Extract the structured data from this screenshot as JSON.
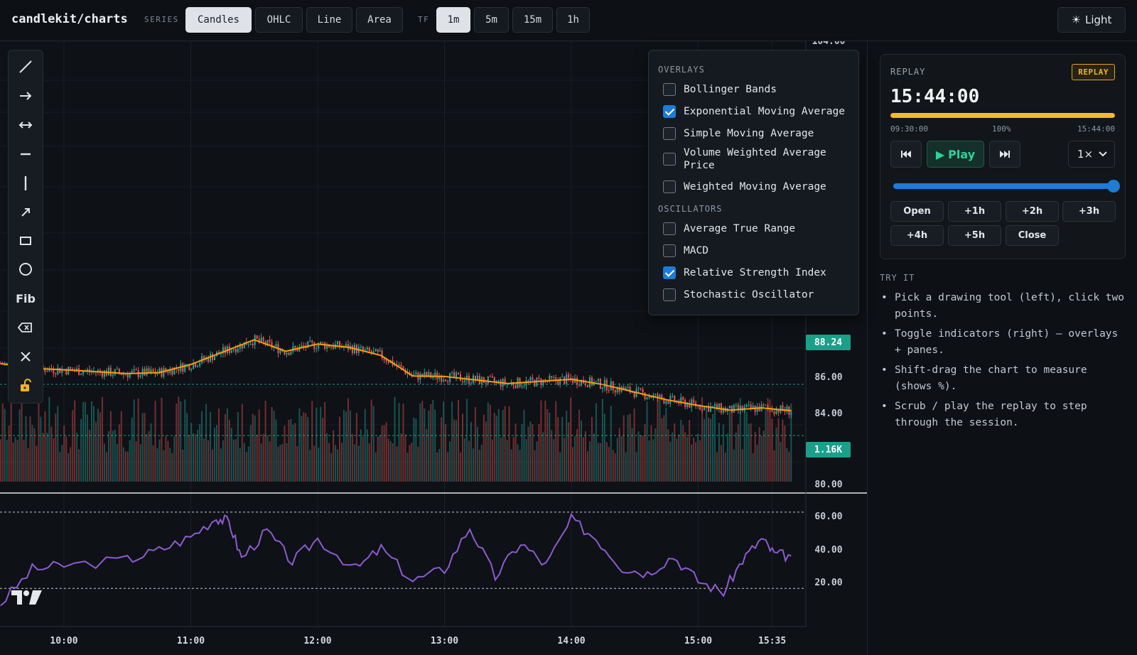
{
  "app": {
    "brand": "candlekit/charts"
  },
  "toolbar": {
    "series_label": "SERIES",
    "series": [
      "Candles",
      "OHLC",
      "Line",
      "Area"
    ],
    "series_active": "Candles",
    "tf_label": "TF",
    "timeframes": [
      "1m",
      "5m",
      "15m",
      "1h"
    ],
    "tf_active": "1m",
    "theme_label": "Light",
    "theme_icon": "sun-icon"
  },
  "drawing_tools": [
    {
      "name": "trendline-tool",
      "icon": "diagonal-line-icon"
    },
    {
      "name": "ray-tool",
      "icon": "arrow-right-icon"
    },
    {
      "name": "extended-line-tool",
      "icon": "double-arrow-icon"
    },
    {
      "name": "horizontal-line-tool",
      "icon": "minus-icon"
    },
    {
      "name": "vertical-line-tool",
      "icon": "vertical-bar-icon"
    },
    {
      "name": "arrow-tool",
      "icon": "arrow-up-right-icon"
    },
    {
      "name": "rectangle-tool",
      "icon": "rectangle-icon"
    },
    {
      "name": "circle-tool",
      "icon": "circle-icon"
    },
    {
      "name": "fib-tool",
      "label": "Fib"
    },
    {
      "name": "eraser-tool",
      "icon": "eraser-icon"
    },
    {
      "name": "clear-tool",
      "icon": "close-icon"
    },
    {
      "name": "lock-tool",
      "icon": "lock-open-icon"
    }
  ],
  "indicators": {
    "overlays_title": "OVERLAYS",
    "overlays": [
      {
        "label": "Bollinger Bands",
        "checked": false
      },
      {
        "label": "Exponential Moving Average",
        "checked": true
      },
      {
        "label": "Simple Moving Average",
        "checked": false
      },
      {
        "label": "Volume Weighted Average Price",
        "checked": false
      },
      {
        "label": "Weighted Moving Average",
        "checked": false
      }
    ],
    "oscillators_title": "OSCILLATORS",
    "oscillators": [
      {
        "label": "Average True Range",
        "checked": false
      },
      {
        "label": "MACD",
        "checked": false
      },
      {
        "label": "Relative Strength Index",
        "checked": true
      },
      {
        "label": "Stochastic Oscillator",
        "checked": false
      }
    ]
  },
  "price_tags": {
    "last_price": "88.24",
    "last_volume": "1.16K"
  },
  "replay": {
    "title": "REPLAY",
    "badge": "REPLAY",
    "time": "15:44:00",
    "progress": 1.0,
    "start_label": "09:30:00",
    "pct_label": "100%",
    "end_label": "15:44:00",
    "prev_icon": "skip-back-icon",
    "play_label": "Play",
    "next_icon": "skip-forward-icon",
    "speed": "1×",
    "scrub_position": 1.0,
    "jumps": [
      "Open",
      "+1h",
      "+2h",
      "+3h",
      "+4h",
      "+5h",
      "Close"
    ]
  },
  "try_it": {
    "title": "TRY IT",
    "tips": [
      "Pick a drawing tool (left), click two points.",
      "Toggle indicators (right) — overlays + panes.",
      "Shift-drag the chart to measure (shows %).",
      "Scrub / play the replay to step through the session."
    ]
  },
  "colors": {
    "up": "#26a69a",
    "down": "#ef5350",
    "ema": "#f59e0b",
    "rsi": "#8e5bd0",
    "accent": "#1e7bd6",
    "replay_bar": "#f5b82e",
    "price_tag": "#1aa08a"
  },
  "chart_data": {
    "type": "candlestick",
    "price_axis_ticks": [
      "104.00",
      "86.00",
      "84.00",
      "82.00",
      "80.00"
    ],
    "rsi_axis_ticks": [
      "60.00",
      "40.00",
      "20.00"
    ],
    "rsi_levels": [
      70,
      30
    ],
    "time_ticks": [
      "10:00",
      "11:00",
      "12:00",
      "13:00",
      "14:00",
      "15:00",
      "15:35"
    ],
    "session_start": "09:30",
    "session_end": "15:44",
    "price_ylim": [
      80,
      104
    ],
    "rsi_ylim": [
      10,
      80
    ],
    "last_price": 88.24,
    "ema_path": [
      [
        9.5,
        92.6
      ],
      [
        9.75,
        91.6
      ],
      [
        10.0,
        91.3
      ],
      [
        10.5,
        90.5
      ],
      [
        10.75,
        90.7
      ],
      [
        11.0,
        92.4
      ],
      [
        11.5,
        97.6
      ],
      [
        11.75,
        95.2
      ],
      [
        12.0,
        96.7
      ],
      [
        12.25,
        96.0
      ],
      [
        12.5,
        94.3
      ],
      [
        12.75,
        90.0
      ],
      [
        13.0,
        89.9
      ],
      [
        13.5,
        88.4
      ],
      [
        14.0,
        89.3
      ],
      [
        14.25,
        88.2
      ],
      [
        14.5,
        86.6
      ],
      [
        14.75,
        85.0
      ],
      [
        15.0,
        83.8
      ],
      [
        15.25,
        82.8
      ],
      [
        15.5,
        83.3
      ],
      [
        15.733,
        82.7
      ]
    ],
    "rsi_path": [
      [
        9.5,
        22
      ],
      [
        9.75,
        40
      ],
      [
        10.0,
        42
      ],
      [
        10.5,
        45
      ],
      [
        10.75,
        50
      ],
      [
        11.0,
        57
      ],
      [
        11.2,
        67
      ],
      [
        11.3,
        65
      ],
      [
        11.4,
        46
      ],
      [
        11.6,
        60
      ],
      [
        11.8,
        44
      ],
      [
        12.0,
        56
      ],
      [
        12.3,
        40
      ],
      [
        12.5,
        51
      ],
      [
        12.75,
        34
      ],
      [
        13.0,
        40
      ],
      [
        13.2,
        62
      ],
      [
        13.4,
        36
      ],
      [
        13.6,
        54
      ],
      [
        13.8,
        42
      ],
      [
        14.0,
        66
      ],
      [
        14.2,
        56
      ],
      [
        14.4,
        41
      ],
      [
        14.6,
        38
      ],
      [
        14.8,
        47
      ],
      [
        15.0,
        34
      ],
      [
        15.2,
        28
      ],
      [
        15.35,
        45
      ],
      [
        15.5,
        56
      ],
      [
        15.6,
        48
      ],
      [
        15.733,
        47
      ]
    ]
  }
}
